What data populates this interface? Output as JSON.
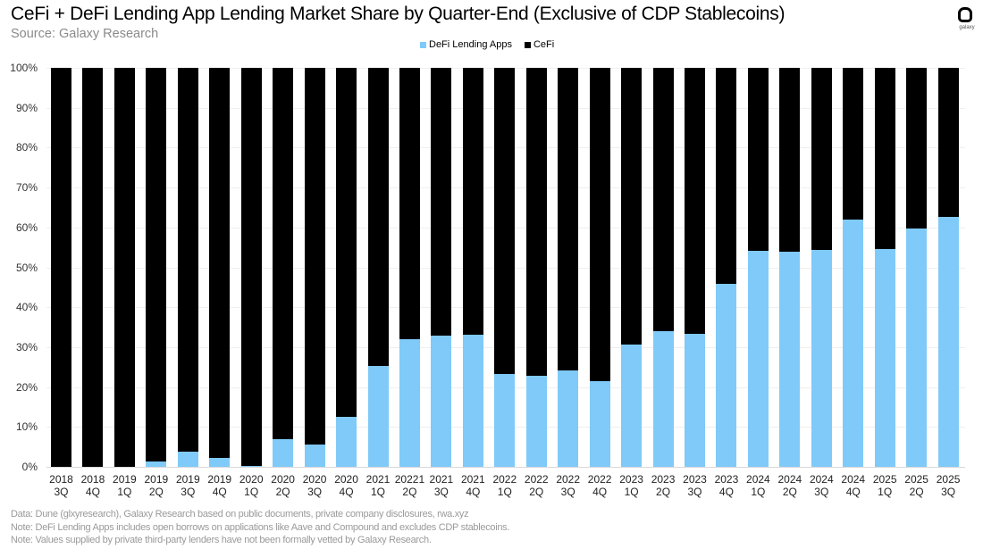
{
  "header": {
    "title": "CeFi + DeFi Lending App Lending Market Share by Quarter-End (Exclusive of CDP Stablecoins)",
    "subtitle": "Source: Galaxy Research",
    "logo_text": "galaxy"
  },
  "legend": [
    {
      "label": "DeFi Lending Apps",
      "color": "#7fcaf8"
    },
    {
      "label": "CeFi",
      "color": "#000000"
    }
  ],
  "yaxis": {
    "ticks": [
      "100%",
      "90%",
      "80%",
      "70%",
      "60%",
      "50%",
      "40%",
      "30%",
      "20%",
      "10%",
      "0%"
    ]
  },
  "notes": [
    "Data: Dune (glxyresearch), Galaxy Research based on public documents, private company disclosures, rwa.xyz",
    "Note: DeFi Lending Apps includes open borrows on applications like Aave and Compound and excludes CDP stablecoins.",
    "Note: Values supplied by private third-party lenders have not been formally vetted  by Galaxy Research."
  ],
  "chart_data": {
    "type": "bar",
    "stacked": true,
    "normalized_100": true,
    "title": "CeFi + DeFi Lending App Lending Market Share by Quarter-End (Exclusive of CDP Stablecoins)",
    "subtitle": "Source: Galaxy Research",
    "xlabel": "",
    "ylabel": "",
    "ylim": [
      0,
      100
    ],
    "y_format": "percent",
    "grid": true,
    "legend_position": "top",
    "categories": [
      [
        "2018",
        "3Q"
      ],
      [
        "2018",
        "4Q"
      ],
      [
        "2019",
        "1Q"
      ],
      [
        "2019",
        "2Q"
      ],
      [
        "2019",
        "3Q"
      ],
      [
        "2019",
        "4Q"
      ],
      [
        "2020",
        "1Q"
      ],
      [
        "2020",
        "2Q"
      ],
      [
        "2020",
        "3Q"
      ],
      [
        "2020",
        "4Q"
      ],
      [
        "2021",
        "1Q"
      ],
      [
        "20221",
        "2Q"
      ],
      [
        "2021",
        "3Q"
      ],
      [
        "2021",
        "4Q"
      ],
      [
        "2022",
        "1Q"
      ],
      [
        "2022",
        "2Q"
      ],
      [
        "2022",
        "3Q"
      ],
      [
        "2022",
        "4Q"
      ],
      [
        "2023",
        "1Q"
      ],
      [
        "2023",
        "2Q"
      ],
      [
        "2023",
        "3Q"
      ],
      [
        "2023",
        "4Q"
      ],
      [
        "2024",
        "1Q"
      ],
      [
        "2024",
        "2Q"
      ],
      [
        "2024",
        "3Q"
      ],
      [
        "2024",
        "4Q"
      ],
      [
        "2025",
        "1Q"
      ],
      [
        "2025",
        "2Q"
      ],
      [
        "2025",
        "3Q"
      ]
    ],
    "series": [
      {
        "name": "DeFi Lending Apps",
        "color": "#7fcaf8",
        "values": [
          0,
          0,
          0,
          1.3,
          3.8,
          2.2,
          0.3,
          7.0,
          5.7,
          12.6,
          25.3,
          32.0,
          32.9,
          33.1,
          23.3,
          22.8,
          24.2,
          21.5,
          30.6,
          34.0,
          33.3,
          45.9,
          54.1,
          53.9,
          54.4,
          62.0,
          54.6,
          59.7,
          62.6
        ]
      },
      {
        "name": "CeFi",
        "color": "#000000",
        "values": [
          100,
          100,
          100,
          98.7,
          96.2,
          97.8,
          99.7,
          93.0,
          94.3,
          87.4,
          74.7,
          68.0,
          67.1,
          66.9,
          76.7,
          77.2,
          75.8,
          78.5,
          69.4,
          66.0,
          66.7,
          54.1,
          45.9,
          46.1,
          45.6,
          38.0,
          45.4,
          40.3,
          37.4
        ]
      }
    ]
  }
}
